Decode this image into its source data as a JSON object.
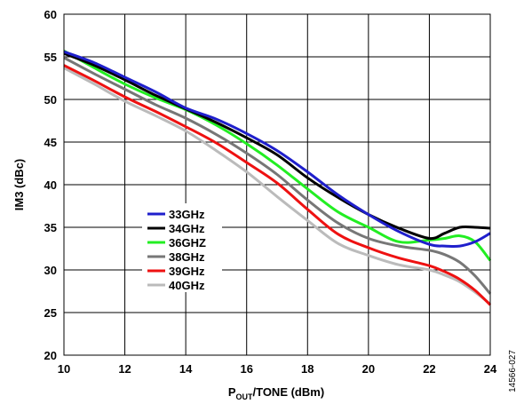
{
  "figure_id": "14566-027",
  "chart_data": {
    "type": "line",
    "title": "",
    "xlabel_main": "P",
    "xlabel_sub": "OUT",
    "xlabel_rest": "/TONE (dBm)",
    "ylabel": "IM3 (dBc)",
    "xlim": [
      10,
      24
    ],
    "ylim": [
      20,
      60
    ],
    "x_ticks": [
      10,
      12,
      14,
      16,
      18,
      20,
      22,
      24
    ],
    "y_ticks": [
      20,
      25,
      30,
      35,
      40,
      45,
      50,
      55,
      60
    ],
    "x_tick_labels": [
      "10",
      "12",
      "14",
      "16",
      "18",
      "20",
      "22",
      "24"
    ],
    "y_tick_labels": [
      "20",
      "25",
      "30",
      "35",
      "40",
      "45",
      "50",
      "55",
      "60"
    ],
    "grid": true,
    "legend_position": "center-left",
    "series": [
      {
        "name": "33GHz",
        "color": "#1f1fcc",
        "x": [
          10,
          11,
          12,
          13,
          14,
          15,
          16,
          17,
          18,
          19,
          20,
          21,
          22,
          22.5,
          23,
          23.5,
          24
        ],
        "y": [
          55.6,
          54.3,
          52.6,
          50.9,
          49.0,
          47.7,
          46.0,
          44.0,
          41.5,
          38.8,
          36.5,
          34.5,
          33.0,
          32.8,
          32.8,
          33.3,
          34.3
        ]
      },
      {
        "name": "34GHz",
        "color": "#000000",
        "x": [
          10,
          11,
          12,
          13,
          14,
          15,
          16,
          17,
          18,
          19,
          20,
          21,
          22,
          22.5,
          23,
          23.5,
          24
        ],
        "y": [
          55.4,
          54.0,
          52.3,
          50.5,
          48.9,
          47.3,
          45.5,
          43.5,
          40.8,
          38.5,
          36.5,
          34.9,
          33.7,
          34.3,
          35.0,
          35.0,
          34.9
        ]
      },
      {
        "name": "36GHZ",
        "color": "#22ee22",
        "x": [
          10,
          11,
          12,
          13,
          14,
          15,
          16,
          17,
          18,
          19,
          20,
          21,
          22,
          22.5,
          23,
          23.5,
          24
        ],
        "y": [
          55.7,
          53.7,
          51.8,
          50.2,
          48.8,
          47.0,
          44.8,
          42.3,
          39.5,
          36.8,
          35.0,
          33.3,
          33.5,
          33.7,
          34.0,
          33.3,
          31.1
        ]
      },
      {
        "name": "38GHz",
        "color": "#777777",
        "x": [
          10,
          11,
          12,
          13,
          14,
          15,
          16,
          17,
          18,
          19,
          20,
          21,
          22,
          22.5,
          23,
          23.5,
          24
        ],
        "y": [
          54.9,
          53.0,
          51.2,
          49.4,
          47.8,
          45.9,
          43.7,
          41.2,
          38.2,
          35.5,
          33.7,
          32.8,
          32.3,
          31.8,
          30.9,
          29.3,
          27.2
        ]
      },
      {
        "name": "39GHz",
        "color": "#ee1111",
        "x": [
          10,
          11,
          12,
          13,
          14,
          15,
          16,
          17,
          18,
          19,
          20,
          21,
          22,
          22.5,
          23,
          23.5,
          24
        ],
        "y": [
          54.0,
          52.2,
          50.3,
          48.6,
          46.8,
          44.9,
          42.6,
          40.2,
          37.1,
          34.2,
          32.6,
          31.4,
          30.5,
          29.8,
          28.9,
          27.6,
          25.9
        ]
      },
      {
        "name": "40GHz",
        "color": "#bbbbbb",
        "x": [
          10,
          11,
          12,
          13,
          14,
          15,
          16,
          17,
          18,
          19,
          20,
          21,
          22,
          22.5,
          23,
          23.5,
          24
        ],
        "y": [
          53.7,
          51.8,
          49.8,
          48.1,
          46.3,
          44.0,
          41.5,
          38.6,
          35.8,
          33.1,
          31.7,
          30.6,
          30.0,
          29.4,
          28.6,
          27.4,
          26.0
        ]
      }
    ]
  }
}
